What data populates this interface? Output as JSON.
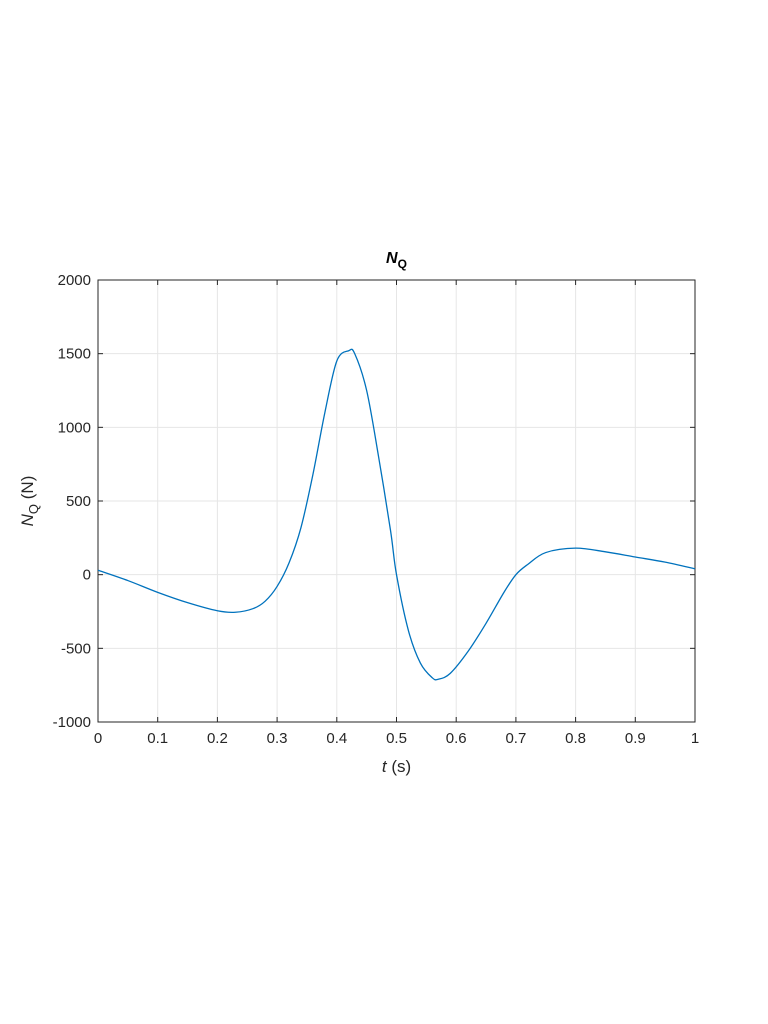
{
  "chart_data": {
    "type": "line",
    "title": {
      "main": "N",
      "sub": "Q"
    },
    "xlabel": {
      "var": "t",
      "rest": " (s)"
    },
    "ylabel": {
      "var": "N",
      "sub": "Q",
      "rest": " (N)"
    },
    "xlim": [
      0,
      1
    ],
    "ylim": [
      -1000,
      2000
    ],
    "xticks": [
      0,
      0.1,
      0.2,
      0.3,
      0.4,
      0.5,
      0.6,
      0.7,
      0.8,
      0.9,
      1
    ],
    "xtick_labels": [
      "0",
      "0.1",
      "0.2",
      "0.3",
      "0.4",
      "0.5",
      "0.6",
      "0.7",
      "0.8",
      "0.9",
      "1"
    ],
    "yticks": [
      -1000,
      -500,
      0,
      500,
      1000,
      1500,
      2000
    ],
    "ytick_labels": [
      "-1000",
      "-500",
      "0",
      "500",
      "1000",
      "1500",
      "2000"
    ],
    "grid": true,
    "color": "#0072BD",
    "series": [
      {
        "x": [
          0,
          0.05,
          0.1,
          0.15,
          0.2,
          0.23,
          0.26,
          0.28,
          0.3,
          0.32,
          0.34,
          0.36,
          0.38,
          0.4,
          0.42,
          0.43,
          0.45,
          0.47,
          0.49,
          0.5,
          0.52,
          0.54,
          0.56,
          0.57,
          0.59,
          0.62,
          0.65,
          0.68,
          0.7,
          0.72,
          0.75,
          0.8,
          0.85,
          0.9,
          0.95,
          1.0
        ],
        "y": [
          30,
          -40,
          -120,
          -190,
          -245,
          -255,
          -230,
          -180,
          -80,
          80,
          320,
          680,
          1100,
          1450,
          1520,
          1500,
          1250,
          800,
          300,
          0,
          -380,
          -600,
          -700,
          -710,
          -670,
          -520,
          -330,
          -120,
          0,
          70,
          150,
          180,
          155,
          120,
          85,
          40
        ]
      }
    ]
  }
}
